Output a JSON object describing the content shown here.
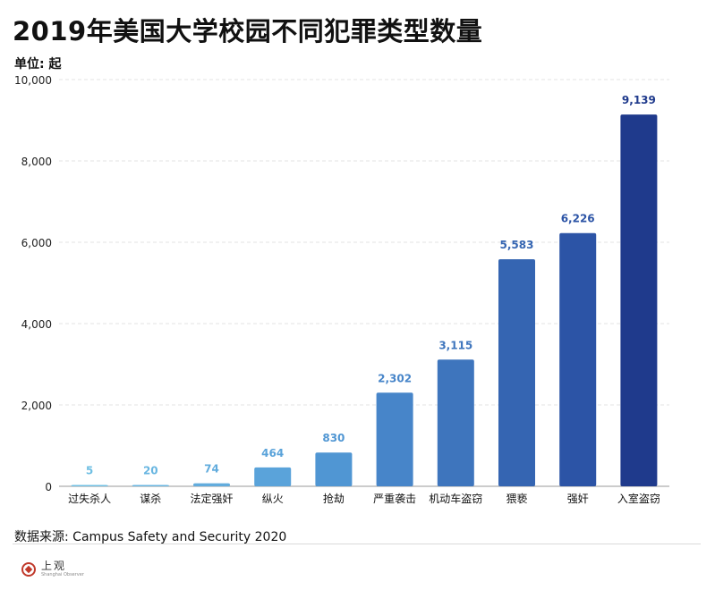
{
  "page": {
    "title": "2019年美国大学校园不同犯罪类型数量",
    "unit_label": "单位: 起",
    "source": "数据来源: Campus Safety and Security 2020",
    "logo": {
      "name": "上观",
      "subtitle": "Shanghai Observer",
      "icon": "shanghai-observer-logo-icon",
      "color": "#c0392b"
    }
  },
  "chart_data": {
    "type": "bar",
    "title": "2019年美国大学校园不同犯罪类型数量",
    "xlabel": "",
    "ylabel": "单位: 起",
    "categories": [
      "过失杀人",
      "谋杀",
      "法定强奸",
      "纵火",
      "抢劫",
      "严重袭击",
      "机动车盗窃",
      "猥亵",
      "强奸",
      "入室盗窃"
    ],
    "values": [
      5,
      20,
      74,
      464,
      830,
      2302,
      3115,
      5583,
      6226,
      9139
    ],
    "value_labels": [
      "5",
      "20",
      "74",
      "464",
      "830",
      "2,302",
      "3,115",
      "5,583",
      "6,226",
      "9,139"
    ],
    "ylim": [
      0,
      10000
    ],
    "yticks": [
      0,
      2000,
      4000,
      6000,
      8000,
      10000
    ],
    "ytick_labels": [
      "0",
      "2,000",
      "4,000",
      "6,000",
      "8,000",
      "10,000"
    ],
    "grid": true,
    "legend": "none",
    "bar_colors": [
      "#6fbfe3",
      "#68b6e1",
      "#62acdd",
      "#5aa3da",
      "#5096d3",
      "#4785c9",
      "#3e75bd",
      "#3565b2",
      "#2c54a6",
      "#1f3a8c"
    ]
  }
}
